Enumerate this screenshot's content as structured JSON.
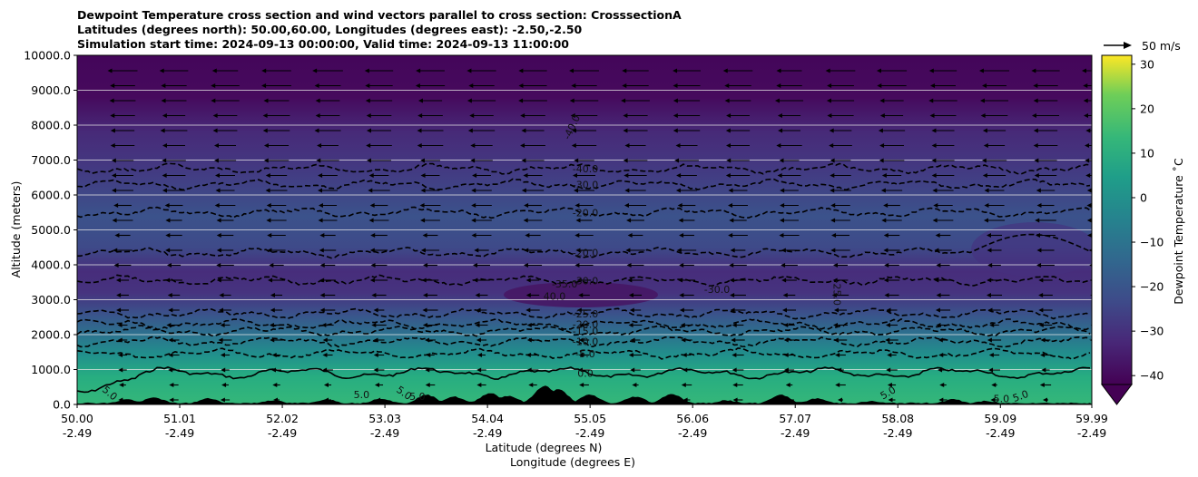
{
  "chart_data": {
    "type": "heatmap",
    "title_lines": [
      "Dewpoint Temperature cross section and wind vectors parallel to cross section: CrosssectionA",
      "Latitudes (degrees north): 50.00,60.00, Longitudes (degrees east): -2.50,-2.50",
      "Simulation start time: 2024-09-13 00:00:00, Valid time: 2024-09-13 11:00:00"
    ],
    "ylabel": "Altitude (meters)",
    "xlabel_lines": [
      "Latitude (degrees N)",
      "Longitude (degrees E)"
    ],
    "ylim": [
      0,
      10000
    ],
    "xlim": [
      50.0,
      59.99
    ],
    "y_ticks": [
      "0.0",
      "1000.0",
      "2000.0",
      "3000.0",
      "4000.0",
      "5000.0",
      "6000.0",
      "7000.0",
      "8000.0",
      "9000.0",
      "10000.0"
    ],
    "y_tick_values": [
      0,
      1000,
      2000,
      3000,
      4000,
      5000,
      6000,
      7000,
      8000,
      9000,
      10000
    ],
    "x_ticks": [
      {
        "lat": "50.00",
        "lon": "-2.49",
        "value": 50.0
      },
      {
        "lat": "51.01",
        "lon": "-2.49",
        "value": 51.01
      },
      {
        "lat": "52.02",
        "lon": "-2.49",
        "value": 52.02
      },
      {
        "lat": "53.03",
        "lon": "-2.49",
        "value": 53.03
      },
      {
        "lat": "54.04",
        "lon": "-2.49",
        "value": 54.04
      },
      {
        "lat": "55.05",
        "lon": "-2.49",
        "value": 55.05
      },
      {
        "lat": "56.06",
        "lon": "-2.49",
        "value": 56.06
      },
      {
        "lat": "57.07",
        "lon": "-2.49",
        "value": 57.07
      },
      {
        "lat": "58.08",
        "lon": "-2.49",
        "value": 58.08
      },
      {
        "lat": "59.09",
        "lon": "-2.49",
        "value": 59.09
      },
      {
        "lat": "59.99",
        "lon": "-2.49",
        "value": 59.99
      }
    ],
    "grid": "horizontal",
    "colorbar": {
      "label": "Dewpoint Temperature ˚C",
      "range": [
        -42,
        32
      ],
      "ticks": [
        "30",
        "20",
        "10",
        "0",
        "−10",
        "−20",
        "−30",
        "−40"
      ],
      "tick_values": [
        30,
        20,
        10,
        0,
        -10,
        -20,
        -30,
        -40
      ],
      "extend": "min",
      "colormap": "viridis"
    },
    "wind_key": {
      "label": "50 m/s"
    },
    "contour_levels": [
      {
        "value": 0,
        "label": "0.0",
        "alt": 900
      },
      {
        "value": -5,
        "label": "-5.0",
        "alt": 1450
      },
      {
        "value": -10,
        "label": "-10.0",
        "alt": 1800
      },
      {
        "value": -15,
        "label": "-15.0",
        "alt": 2100
      },
      {
        "value": -20,
        "label": "-20.0",
        "alt": 2300
      },
      {
        "value": -25,
        "label": "-25.0",
        "alt": 2600
      },
      {
        "value": -30,
        "label": "-30.0",
        "alt": 3550
      },
      {
        "value": -20,
        "label": "-20.0",
        "alt": 4350
      },
      {
        "value": -20,
        "label": "-20.0",
        "alt": 5500
      },
      {
        "value": -30,
        "label": "-30.0",
        "alt": 6300
      },
      {
        "value": -40,
        "label": "-40.0",
        "alt": 6750
      }
    ],
    "extra_contour_labels": [
      {
        "label": "5.0",
        "lat": 50.3,
        "alt": 250,
        "rotate": 40
      },
      {
        "label": "5.0",
        "lat": 52.8,
        "alt": 180,
        "rotate": 0
      },
      {
        "label": "5.0",
        "lat": 53.2,
        "alt": 250,
        "rotate": 35
      },
      {
        "label": "5.0",
        "lat": 53.35,
        "alt": 130,
        "rotate": 0
      },
      {
        "label": "5.0",
        "lat": 58.0,
        "alt": 250,
        "rotate": -30
      },
      {
        "label": "5.0",
        "lat": 59.1,
        "alt": 60,
        "rotate": 0
      },
      {
        "label": "5.0",
        "lat": 59.3,
        "alt": 150,
        "rotate": -20
      },
      {
        "label": "-35.0",
        "lat": 54.8,
        "alt": 3350,
        "rotate": 0
      },
      {
        "label": "40.0",
        "lat": 54.7,
        "alt": 3000,
        "rotate": 0
      },
      {
        "label": "-30.0",
        "lat": 56.3,
        "alt": 3200,
        "rotate": 0
      },
      {
        "label": "-25.0",
        "lat": 57.45,
        "alt": 3200,
        "rotate": 90
      },
      {
        "label": "-40.0",
        "lat": 54.9,
        "alt": 7900,
        "rotate": -65
      }
    ]
  }
}
